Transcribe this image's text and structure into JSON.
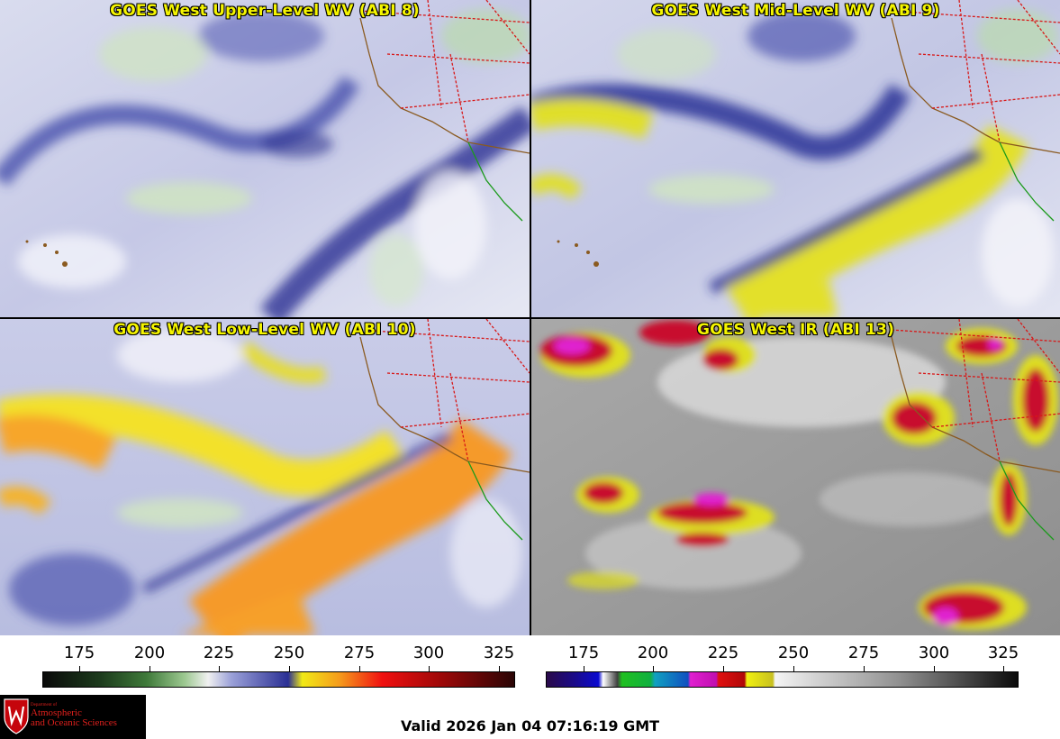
{
  "panels": [
    {
      "title": "GOES West Upper-Level WV (ABI 8)"
    },
    {
      "title": "GOES West Mid-Level WV (ABI 9)"
    },
    {
      "title": "GOES West Low-Level WV (ABI 10)"
    },
    {
      "title": "GOES West IR (ABI 13)"
    }
  ],
  "colorbars": {
    "wv": {
      "ticks": [
        "175",
        "200",
        "225",
        "250",
        "275",
        "300",
        "325"
      ]
    },
    "ir": {
      "ticks": [
        "175",
        "200",
        "225",
        "250",
        "275",
        "300",
        "325"
      ]
    }
  },
  "valid_time": "Valid 2026 Jan 04 07:16:19 GMT",
  "logo": {
    "department": "Department of",
    "line1": "Atmospheric",
    "line2": "and Oceanic Sciences"
  },
  "colors": {
    "title_text": "#f5f500",
    "logo_text": "#e0201c",
    "border_state": "#d81818",
    "border_coast": "#8a5a20",
    "border_mexico": "#1a9a1a"
  }
}
